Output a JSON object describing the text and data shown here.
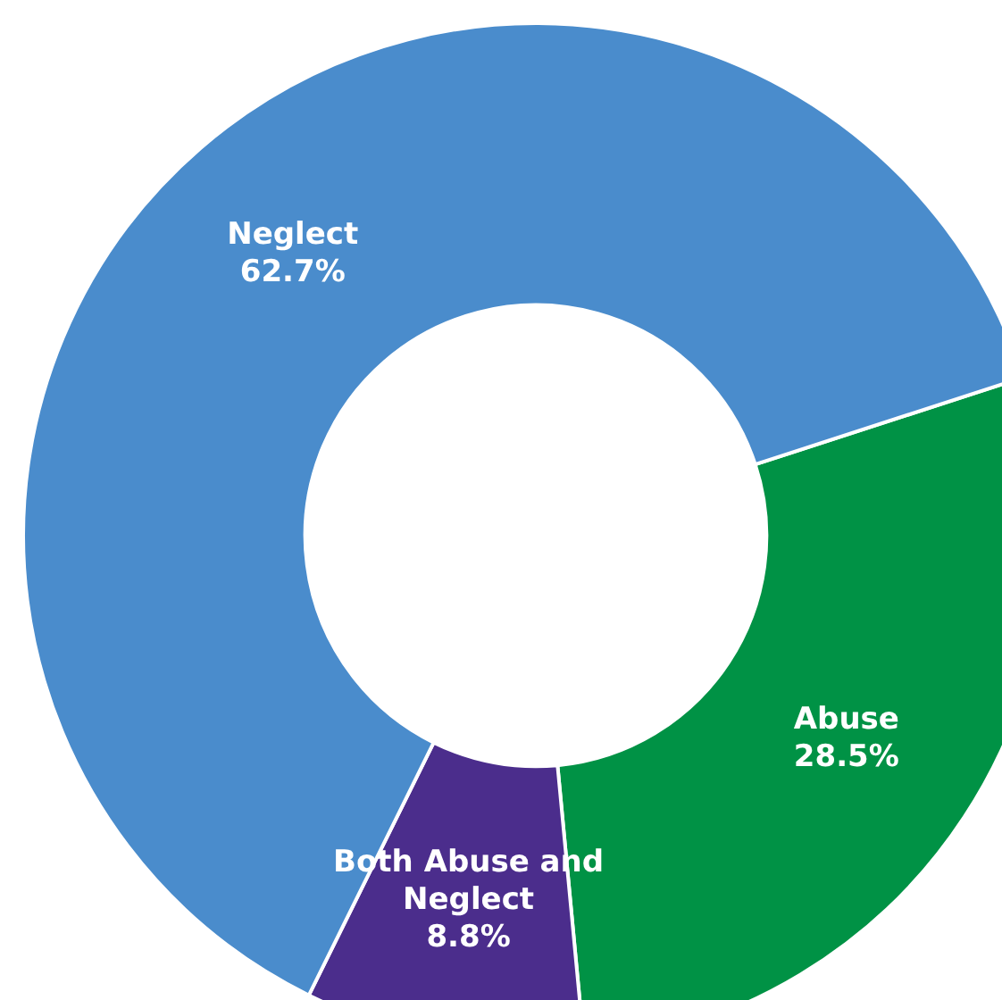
{
  "chart_data": {
    "type": "donut",
    "categories": [
      "Abuse",
      "Both Abuse and Neglect",
      "Neglect"
    ],
    "values": [
      28.5,
      8.8,
      62.7
    ],
    "value_labels": [
      "28.5%",
      "8.8%",
      "62.7%"
    ],
    "colors": [
      "#009245",
      "#4b2d8c",
      "#4a8ccc"
    ],
    "legend": false
  }
}
